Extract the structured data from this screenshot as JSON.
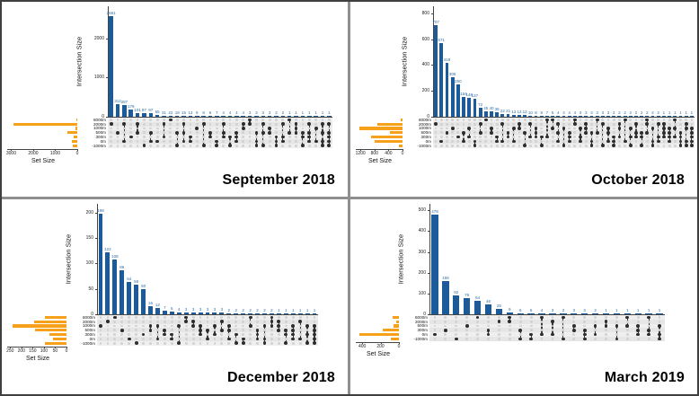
{
  "colors": {
    "intersection_bar": "#1b5a9b",
    "set_bar": "#f7a11a",
    "value_label": "#2e6da4",
    "axis": "#444444",
    "panel_border": "#3f3f3f"
  },
  "chart_data": [
    {
      "type": "bar",
      "variant": "upset",
      "title": "September 2018",
      "layout": {
        "axis_left": 118,
        "chart_right": 368
      },
      "intersection": {
        "ylabel": "Intersection Size",
        "yticks": [
          0,
          1000,
          2000
        ],
        "ymax": 2700,
        "values": [
          2561,
          312,
          287,
          179,
          101,
          97,
          97,
          55,
          31,
          22,
          18,
          15,
          13,
          9,
          8,
          8,
          7,
          4,
          4,
          4,
          4,
          3,
          3,
          3,
          3,
          2,
          2,
          1,
          1,
          1,
          1,
          1,
          1,
          1
        ]
      },
      "sets": {
        "xlabel": "Set Size",
        "xticks": [
          3000,
          2000,
          1000,
          0
        ],
        "xmax": 3100,
        "labels": [
          "6000m",
          "2000m",
          "1000m",
          "500m",
          "300m",
          "0m",
          "-1000m"
        ],
        "sizes": [
          40,
          2900,
          70,
          450,
          150,
          260,
          200
        ]
      },
      "matrix": [
        [
          1
        ],
        [
          3
        ],
        [
          1,
          5
        ],
        [
          4
        ],
        [
          1,
          3
        ],
        [
          6
        ],
        [
          3,
          5
        ],
        [
          5
        ],
        [
          1,
          4
        ],
        [
          0
        ],
        [
          3,
          6
        ],
        [
          1,
          3,
          5
        ],
        [
          4,
          5
        ],
        [
          2
        ],
        [
          1,
          6
        ],
        [
          3,
          4
        ],
        [
          5,
          6
        ],
        [
          1,
          3,
          4
        ],
        [
          4,
          6
        ],
        [
          3,
          4,
          5
        ],
        [
          1,
          2
        ],
        [
          0,
          1
        ],
        [
          3,
          5,
          6
        ],
        [
          1,
          3,
          6
        ],
        [
          2,
          3
        ],
        [
          4,
          5,
          6
        ],
        [
          1,
          4,
          5
        ],
        [
          0,
          3
        ],
        [
          1,
          2,
          3
        ],
        [
          3,
          4,
          6
        ],
        [
          1,
          3,
          4,
          5
        ],
        [
          2,
          5
        ],
        [
          1,
          3,
          5,
          6
        ],
        [
          1,
          3,
          4,
          5,
          6
        ]
      ]
    },
    {
      "type": "bar",
      "variant": "upset",
      "title": "October 2018",
      "layout": {
        "axis_left": 92,
        "chart_right": 383
      },
      "intersection": {
        "ylabel": "Intersection Size",
        "yticks": [
          0,
          200,
          400,
          600,
          800
        ],
        "ymax": 820,
        "values": [
          707,
          571,
          418,
          305,
          250,
          154,
          148,
          137,
          72,
          45,
          40,
          36,
          22,
          21,
          13,
          12,
          12,
          10,
          8,
          8,
          7,
          5,
          4,
          4,
          4,
          4,
          3,
          3,
          3,
          3,
          3,
          3,
          2,
          2,
          2,
          2,
          2,
          2,
          2,
          2,
          2,
          1,
          1,
          1,
          1,
          1,
          1
        ]
      },
      "sets": {
        "xlabel": "Set Size",
        "xticks": [
          1200,
          800,
          400,
          0
        ],
        "xmax": 1280,
        "labels": [
          "6000m",
          "2000m",
          "1000m",
          "500m",
          "300m",
          "0m",
          "-1000m"
        ],
        "sizes": [
          60,
          720,
          1230,
          370,
          900,
          800,
          90
        ]
      },
      "matrix": [
        [
          1
        ],
        [
          5
        ],
        [
          3
        ],
        [
          2
        ],
        [
          4
        ],
        [
          3,
          5
        ],
        [
          2,
          4
        ],
        [
          5,
          6
        ],
        [
          1,
          3
        ],
        [
          0
        ],
        [
          2,
          3
        ],
        [
          4,
          5
        ],
        [
          1,
          5
        ],
        [
          3,
          4
        ],
        [
          2,
          5
        ],
        [
          1,
          2
        ],
        [
          3,
          6
        ],
        [
          1,
          4
        ],
        [
          2,
          3,
          4
        ],
        [
          4,
          6
        ],
        [
          0,
          4
        ],
        [
          0,
          2
        ],
        [
          1,
          3,
          5
        ],
        [
          2,
          6
        ],
        [
          3,
          4,
          5
        ],
        [
          0,
          1
        ],
        [
          2,
          4,
          5
        ],
        [
          1,
          2,
          3
        ],
        [
          3,
          5,
          6
        ],
        [
          0,
          3
        ],
        [
          1,
          6
        ],
        [
          2,
          3,
          5
        ],
        [
          4,
          5,
          6
        ],
        [
          1,
          2,
          4
        ],
        [
          0,
          5
        ],
        [
          2,
          4,
          6
        ],
        [
          1,
          3,
          4
        ],
        [
          3,
          4,
          6
        ],
        [
          0,
          1,
          3
        ],
        [
          2,
          5,
          6
        ],
        [
          1,
          4,
          5
        ],
        [
          1,
          2,
          3,
          4
        ],
        [
          2,
          3,
          4,
          5
        ],
        [
          0,
          2,
          4
        ],
        [
          3,
          4,
          5,
          6
        ],
        [
          1,
          2,
          5,
          6
        ],
        [
          2,
          3,
          4,
          5,
          6
        ]
      ]
    },
    {
      "type": "bar",
      "variant": "upset",
      "title": "December 2018",
      "layout": {
        "axis_left": 106,
        "chart_right": 352
      },
      "intersection": {
        "ylabel": "Intersection Size",
        "yticks": [
          0,
          50,
          100,
          150,
          200
        ],
        "ymax": 208,
        "values": [
          198,
          122,
          108,
          86,
          64,
          59,
          50,
          16,
          12,
          7,
          6,
          4,
          3,
          3,
          3,
          3,
          3,
          3,
          2,
          2,
          2,
          2,
          2,
          2,
          2,
          1,
          1,
          1,
          1,
          1,
          1
        ]
      },
      "sets": {
        "xlabel": "Set Size",
        "xticks": [
          250,
          200,
          150,
          100,
          50,
          0
        ],
        "xmax": 255,
        "labels": [
          "6000m",
          "2000m",
          "1000m",
          "500m",
          "300m",
          "0m",
          "-1000m"
        ],
        "sizes": [
          95,
          145,
          240,
          140,
          75,
          60,
          95
        ]
      },
      "matrix": [
        [
          2
        ],
        [
          1
        ],
        [
          0
        ],
        [
          3
        ],
        [
          5
        ],
        [
          6
        ],
        [
          4
        ],
        [
          2,
          3
        ],
        [
          2,
          5
        ],
        [
          3,
          4
        ],
        [
          4,
          5
        ],
        [
          2,
          6
        ],
        [
          0,
          1
        ],
        [
          1,
          2
        ],
        [
          2,
          3,
          4
        ],
        [
          3,
          5
        ],
        [
          2,
          4
        ],
        [
          1,
          3
        ],
        [
          2,
          3,
          5
        ],
        [
          4,
          6
        ],
        [
          5,
          6
        ],
        [
          0,
          2
        ],
        [
          3,
          4,
          5
        ],
        [
          2,
          5,
          6
        ],
        [
          0,
          1,
          2
        ],
        [
          1,
          2,
          3
        ],
        [
          3,
          4,
          6
        ],
        [
          2,
          3,
          4,
          5
        ],
        [
          1,
          5
        ],
        [
          2,
          4,
          6
        ],
        [
          2,
          3,
          4,
          5,
          6
        ]
      ]
    },
    {
      "type": "bar",
      "variant": "upset",
      "title": "March 2019",
      "layout": {
        "axis_left": 88,
        "chart_right": 350
      },
      "intersection": {
        "ylabel": "Intersection Size",
        "yticks": [
          0,
          100,
          200,
          300,
          400,
          500
        ],
        "ymax": 510,
        "values": [
          478,
          159,
          92,
          79,
          64,
          46,
          25,
          9,
          6,
          6,
          4,
          3,
          3,
          3,
          3,
          2,
          1,
          1,
          1,
          1,
          1,
          1
        ]
      },
      "sets": {
        "xlabel": "Set Size",
        "xticks": [
          400,
          200,
          0
        ],
        "xmax": 450,
        "labels": [
          "6000m",
          "2000m",
          "500m",
          "300m",
          "0m",
          "-1000m"
        ],
        "sizes": [
          70,
          25,
          55,
          175,
          430,
          85
        ]
      },
      "matrix": [
        [
          4
        ],
        [
          3
        ],
        [
          5
        ],
        [
          2
        ],
        [
          0
        ],
        [
          3,
          4
        ],
        [
          1
        ],
        [
          0,
          1
        ],
        [
          3,
          5
        ],
        [
          4,
          5
        ],
        [
          0,
          4
        ],
        [
          1,
          4
        ],
        [
          0,
          5
        ],
        [
          2,
          3
        ],
        [
          3,
          4,
          5
        ],
        [
          2,
          4
        ],
        [
          1,
          2
        ],
        [
          2,
          5
        ],
        [
          0,
          2
        ],
        [
          2,
          3,
          4
        ],
        [
          0,
          3,
          4
        ],
        [
          2,
          4,
          5
        ]
      ]
    }
  ]
}
